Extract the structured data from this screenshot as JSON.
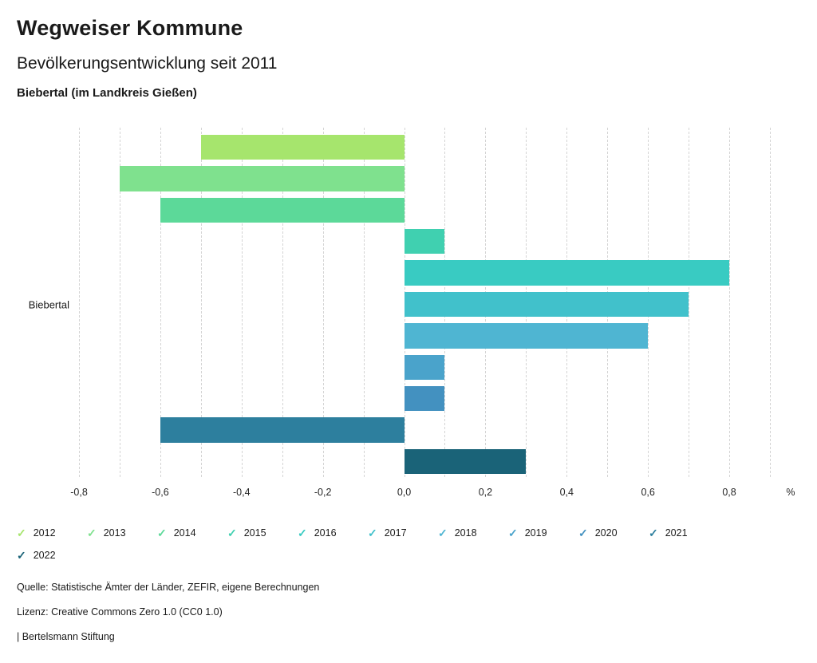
{
  "header": {
    "title": "Wegweiser Kommune",
    "subtitle": "Bevölkerungsentwicklung seit 2011",
    "location": "Biebertal (im Landkreis Gießen)"
  },
  "chart_data": {
    "type": "bar",
    "orientation": "horizontal",
    "title": "Bevölkerungsentwicklung seit 2011",
    "category": "Biebertal",
    "xlabel": "%",
    "unit_label": "%",
    "xlim": [
      -0.8,
      0.9
    ],
    "xticks": [
      -0.8,
      -0.6,
      -0.4,
      -0.2,
      0,
      0.2,
      0.4,
      0.6,
      0.8
    ],
    "xtick_labels": [
      "-0,8",
      "-0,6",
      "-0,4",
      "-0,2",
      "0,0",
      "0,2",
      "0,4",
      "0,6",
      "0,8"
    ],
    "gridlines": [
      -0.8,
      -0.7,
      -0.6,
      -0.5,
      -0.4,
      -0.3,
      -0.2,
      -0.1,
      0,
      0.1,
      0.2,
      0.3,
      0.4,
      0.5,
      0.6,
      0.7,
      0.8,
      0.9
    ],
    "grid_style": "dashed",
    "legend_position": "bottom",
    "series": [
      {
        "name": "2012",
        "value": -0.5,
        "color": "#a6e56d"
      },
      {
        "name": "2013",
        "value": -0.7,
        "color": "#7fe18e"
      },
      {
        "name": "2014",
        "value": -0.6,
        "color": "#5cd999"
      },
      {
        "name": "2015",
        "value": 0.1,
        "color": "#40d0b0"
      },
      {
        "name": "2016",
        "value": 0.8,
        "color": "#39cbc2"
      },
      {
        "name": "2017",
        "value": 0.7,
        "color": "#41c1cb"
      },
      {
        "name": "2018",
        "value": 0.6,
        "color": "#4fb5d2"
      },
      {
        "name": "2019",
        "value": 0.1,
        "color": "#4aa3cb"
      },
      {
        "name": "2020",
        "value": 0.1,
        "color": "#4391c0"
      },
      {
        "name": "2021",
        "value": -0.6,
        "color": "#2d7f9e"
      },
      {
        "name": "2022",
        "value": 0.3,
        "color": "#1a6378"
      }
    ]
  },
  "legend": {
    "check_glyph": "✓"
  },
  "footer": {
    "source": "Quelle: Statistische Ämter der Länder, ZEFIR, eigene Berechnungen",
    "license": "Lizenz: Creative Commons Zero 1.0 (CC0 1.0)",
    "attribution": "| Bertelsmann Stiftung"
  }
}
